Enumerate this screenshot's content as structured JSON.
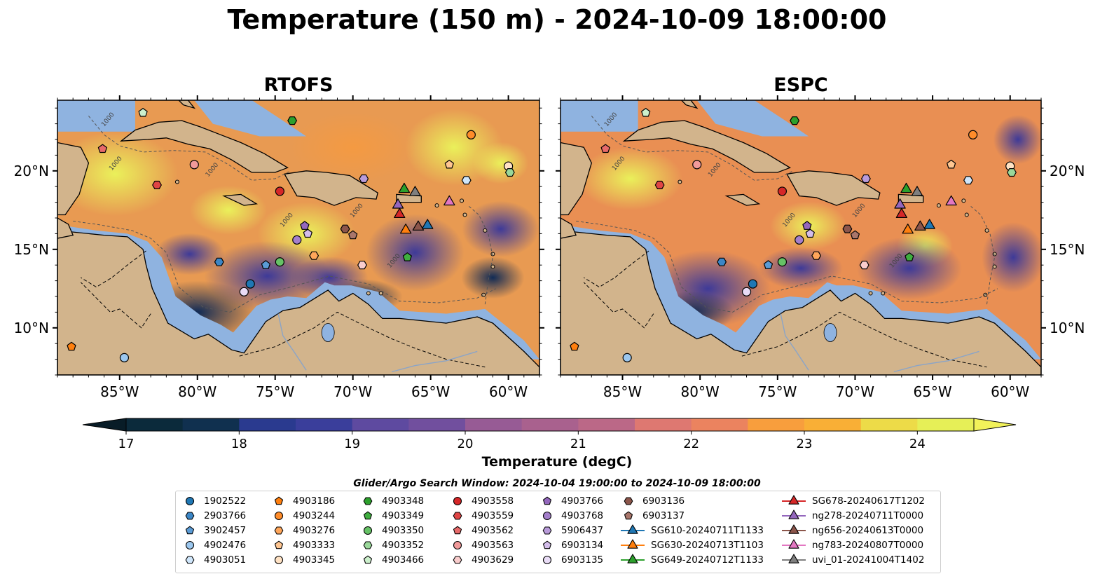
{
  "title": "Temperature (150 m) - 2024-10-09 18:00:00",
  "panels": [
    {
      "title": "RTOFS"
    },
    {
      "title": "ESPC"
    }
  ],
  "lon_ticks": [
    "85°W",
    "80°W",
    "75°W",
    "70°W",
    "65°W",
    "60°W"
  ],
  "lat_ticks": [
    "20°N",
    "15°N",
    "10°N"
  ],
  "map_extent": {
    "lon": [
      -89,
      -58
    ],
    "lat": [
      7,
      24.5
    ]
  },
  "contour_labels": [
    "1000",
    "1000",
    "1000",
    "1000",
    "1000",
    "1000"
  ],
  "colorbar": {
    "label": "Temperature (degC)",
    "ticks": [
      "17",
      "18",
      "19",
      "20",
      "21",
      "22",
      "23",
      "24"
    ],
    "range": [
      17,
      24.5
    ],
    "colors": [
      "#0b2a3b",
      "#10304f",
      "#1f3374",
      "#2a3a8f",
      "#3a3e9b",
      "#4c439f",
      "#5e4aa0",
      "#714f9e",
      "#84559a",
      "#975b95",
      "#a9618e",
      "#bb6887",
      "#cd6f7c",
      "#de7871",
      "#eb835f",
      "#f3904d",
      "#f89e3d",
      "#f9af36",
      "#f4c43d",
      "#eddb48",
      "#e6ef57"
    ],
    "min_extend_color": "#081c27",
    "max_extend_color": "#f2f25a"
  },
  "colors": {
    "land": "#d2b48c",
    "shelf": "#8fb3e0",
    "deep": "#0b2230"
  },
  "legend": {
    "title": "Glider/Argo Search Window: 2024-10-04 19:00:00 to 2024-10-09 18:00:00",
    "columns": [
      [
        {
          "label": "1902522",
          "marker": "circle",
          "color": "#1f77b4"
        },
        {
          "label": "2903766",
          "marker": "hexagon",
          "color": "#3b86c6"
        },
        {
          "label": "3902457",
          "marker": "pentagon",
          "color": "#5a9bd5"
        },
        {
          "label": "4902476",
          "marker": "circle",
          "color": "#9cc7ee"
        },
        {
          "label": "4903051",
          "marker": "hexagon",
          "color": "#cfe6fb"
        }
      ],
      [
        {
          "label": "4903186",
          "marker": "pentagon",
          "color": "#ff7f0e"
        },
        {
          "label": "4903244",
          "marker": "circle",
          "color": "#ff8c2a"
        },
        {
          "label": "4903276",
          "marker": "hexagon",
          "color": "#ffa65a"
        },
        {
          "label": "4903333",
          "marker": "pentagon",
          "color": "#ffc691"
        },
        {
          "label": "4903345",
          "marker": "circle",
          "color": "#ffe2c4"
        }
      ],
      [
        {
          "label": "4903348",
          "marker": "hexagon",
          "color": "#2ca02c"
        },
        {
          "label": "4903349",
          "marker": "pentagon",
          "color": "#3fae3f"
        },
        {
          "label": "4903350",
          "marker": "circle",
          "color": "#66c266"
        },
        {
          "label": "4903352",
          "marker": "hexagon",
          "color": "#9ad89a"
        },
        {
          "label": "4903466",
          "marker": "pentagon",
          "color": "#ccf0cc"
        }
      ],
      [
        {
          "label": "4903558",
          "marker": "circle",
          "color": "#d62728"
        },
        {
          "label": "4903559",
          "marker": "hexagon",
          "color": "#e04545"
        },
        {
          "label": "4903562",
          "marker": "pentagon",
          "color": "#e86a6a"
        },
        {
          "label": "4903563",
          "marker": "circle",
          "color": "#f19a9a"
        },
        {
          "label": "4903629",
          "marker": "hexagon",
          "color": "#f9cccc"
        }
      ],
      [
        {
          "label": "4903766",
          "marker": "pentagon",
          "color": "#9467bd"
        },
        {
          "label": "4903768",
          "marker": "circle",
          "color": "#a47fcb"
        },
        {
          "label": "5906437",
          "marker": "hexagon",
          "color": "#b99bda"
        },
        {
          "label": "6903134",
          "marker": "pentagon",
          "color": "#d3bdea"
        },
        {
          "label": "6903135",
          "marker": "circle",
          "color": "#e9dcf6"
        }
      ],
      [
        {
          "label": "6903136",
          "marker": "hexagon",
          "color": "#8c564b"
        },
        {
          "label": "6903137",
          "marker": "pentagon",
          "color": "#a9766b"
        },
        {
          "label": "SG610-20240711T1133",
          "marker": "triangle",
          "color": "#1f77b4",
          "line": true
        },
        {
          "label": "SG630-20240713T1103",
          "marker": "triangle",
          "color": "#ff7f0e",
          "line": true
        },
        {
          "label": "SG649-20240712T1133",
          "marker": "triangle",
          "color": "#2ca02c",
          "line": true
        }
      ],
      [
        {
          "label": "SG678-20240617T1202",
          "marker": "triangle",
          "color": "#d62728",
          "line": true
        },
        {
          "label": "ng278-20240711T0000",
          "marker": "triangle",
          "color": "#9467bd",
          "line": true
        },
        {
          "label": "ng656-20240613T0000",
          "marker": "triangle",
          "color": "#8c564b",
          "line": true
        },
        {
          "label": "ng783-20240807T0000",
          "marker": "triangle",
          "color": "#e377c2",
          "line": true
        },
        {
          "label": "uvi_01-20241004T1402",
          "marker": "triangle",
          "color": "#7f7f7f",
          "line": true
        }
      ]
    ]
  },
  "platforms": [
    {
      "id": "1902522",
      "lon": -76.6,
      "lat": 12.8
    },
    {
      "id": "2903766",
      "lon": -78.6,
      "lat": 14.2
    },
    {
      "id": "3902457",
      "lon": -75.6,
      "lat": 14.0
    },
    {
      "id": "4902476",
      "lon": -84.7,
      "lat": 8.1
    },
    {
      "id": "4903051",
      "lon": -62.7,
      "lat": 19.4
    },
    {
      "id": "4903186",
      "lon": -88.1,
      "lat": 8.8
    },
    {
      "id": "4903244",
      "lon": -62.4,
      "lat": 22.3
    },
    {
      "id": "4903276",
      "lon": -72.5,
      "lat": 14.6
    },
    {
      "id": "4903333",
      "lon": -63.8,
      "lat": 20.4
    },
    {
      "id": "4903345",
      "lon": -60.0,
      "lat": 20.3
    },
    {
      "id": "4903348",
      "lon": -73.9,
      "lat": 23.2
    },
    {
      "id": "4903349",
      "lon": -66.5,
      "lat": 14.5
    },
    {
      "id": "4903350",
      "lon": -74.7,
      "lat": 14.2
    },
    {
      "id": "4903352",
      "lon": -59.9,
      "lat": 19.9
    },
    {
      "id": "4903466",
      "lon": -83.5,
      "lat": 23.7
    },
    {
      "id": "4903558",
      "lon": -74.7,
      "lat": 18.7
    },
    {
      "id": "4903559",
      "lon": -82.6,
      "lat": 19.1
    },
    {
      "id": "4903562",
      "lon": -86.1,
      "lat": 21.4
    },
    {
      "id": "4903563",
      "lon": -80.2,
      "lat": 20.4
    },
    {
      "id": "4903629",
      "lon": -69.4,
      "lat": 14.0
    },
    {
      "id": "4903766",
      "lon": -73.1,
      "lat": 16.5
    },
    {
      "id": "4903768",
      "lon": -73.6,
      "lat": 15.6
    },
    {
      "id": "5906437",
      "lon": -69.3,
      "lat": 19.5
    },
    {
      "id": "6903134",
      "lon": -72.9,
      "lat": 16.0
    },
    {
      "id": "6903135",
      "lon": -77.0,
      "lat": 12.3
    },
    {
      "id": "6903136",
      "lon": -70.5,
      "lat": 16.3
    },
    {
      "id": "6903137",
      "lon": -70.0,
      "lat": 15.9
    },
    {
      "id": "SG610-20240711T1133",
      "lon": -65.2,
      "lat": 16.6
    },
    {
      "id": "SG630-20240713T1103",
      "lon": -66.6,
      "lat": 16.3
    },
    {
      "id": "SG649-20240712T1133",
      "lon": -66.7,
      "lat": 18.9
    },
    {
      "id": "SG678-20240617T1202",
      "lon": -67.0,
      "lat": 17.3
    },
    {
      "id": "ng278-20240711T0000",
      "lon": -67.1,
      "lat": 17.9
    },
    {
      "id": "ng656-20240613T0000",
      "lon": -65.8,
      "lat": 16.5
    },
    {
      "id": "ng783-20240807T0000",
      "lon": -63.8,
      "lat": 18.1
    },
    {
      "id": "uvi_01-20241004T1402",
      "lon": -66.0,
      "lat": 18.7
    }
  ]
}
